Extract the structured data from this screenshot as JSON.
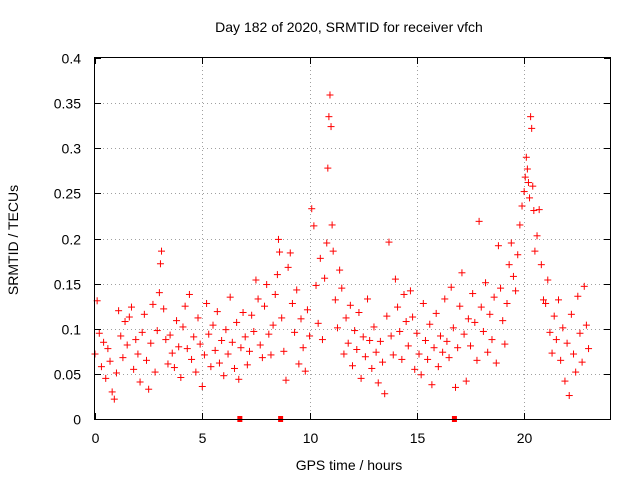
{
  "chart_data": {
    "type": "scatter",
    "title": "Day 182 of 2020, SRMTID for receiver vfch",
    "xlabel": "GPS time / hours",
    "ylabel": "SRMTID / TECUs",
    "xlim": [
      0,
      24
    ],
    "ylim": [
      0,
      0.4
    ],
    "xticks": [
      0,
      5,
      10,
      15,
      20
    ],
    "xtick_labels": [
      "0",
      "5",
      "10",
      "15",
      "20"
    ],
    "yticks": [
      0,
      0.05,
      0.1,
      0.15,
      0.2,
      0.25,
      0.3,
      0.35,
      0.4
    ],
    "ytick_labels": [
      "0",
      "0.05",
      "0.1",
      "0.15",
      "0.2",
      "0.25",
      "0.3",
      "0.35",
      "0.4"
    ],
    "grid": true,
    "marker": "+",
    "color": "#ff0000",
    "series": [
      {
        "name": "SRMTID",
        "points": [
          [
            0.0,
            0.072
          ],
          [
            0.1,
            0.131
          ],
          [
            0.2,
            0.095
          ],
          [
            0.3,
            0.058
          ],
          [
            0.4,
            0.085
          ],
          [
            0.5,
            0.045
          ],
          [
            0.6,
            0.078
          ],
          [
            0.7,
            0.064
          ],
          [
            0.8,
            0.03
          ],
          [
            0.9,
            0.022
          ],
          [
            1.0,
            0.051
          ],
          [
            1.1,
            0.12
          ],
          [
            1.2,
            0.092
          ],
          [
            1.3,
            0.068
          ],
          [
            1.4,
            0.108
          ],
          [
            1.5,
            0.082
          ],
          [
            1.6,
            0.113
          ],
          [
            1.7,
            0.124
          ],
          [
            1.8,
            0.055
          ],
          [
            1.9,
            0.088
          ],
          [
            2.0,
            0.072
          ],
          [
            2.1,
            0.041
          ],
          [
            2.2,
            0.096
          ],
          [
            2.3,
            0.116
          ],
          [
            2.4,
            0.065
          ],
          [
            2.5,
            0.033
          ],
          [
            2.6,
            0.084
          ],
          [
            2.7,
            0.127
          ],
          [
            2.8,
            0.052
          ],
          [
            2.9,
            0.098
          ],
          [
            3.0,
            0.14
          ],
          [
            3.05,
            0.172
          ],
          [
            3.1,
            0.186
          ],
          [
            3.2,
            0.122
          ],
          [
            3.3,
            0.088
          ],
          [
            3.4,
            0.061
          ],
          [
            3.5,
            0.093
          ],
          [
            3.6,
            0.073
          ],
          [
            3.7,
            0.057
          ],
          [
            3.8,
            0.109
          ],
          [
            3.9,
            0.08
          ],
          [
            4.0,
            0.046
          ],
          [
            4.1,
            0.102
          ],
          [
            4.2,
            0.125
          ],
          [
            4.3,
            0.078
          ],
          [
            4.4,
            0.138
          ],
          [
            4.5,
            0.066
          ],
          [
            4.6,
            0.091
          ],
          [
            4.7,
            0.052
          ],
          [
            4.8,
            0.112
          ],
          [
            4.9,
            0.083
          ],
          [
            5.0,
            0.036
          ],
          [
            5.1,
            0.071
          ],
          [
            5.2,
            0.128
          ],
          [
            5.3,
            0.094
          ],
          [
            5.4,
            0.058
          ],
          [
            5.5,
            0.104
          ],
          [
            5.6,
            0.076
          ],
          [
            5.7,
            0.119
          ],
          [
            5.8,
            0.062
          ],
          [
            5.9,
            0.087
          ],
          [
            6.0,
            0.048
          ],
          [
            6.1,
            0.099
          ],
          [
            6.2,
            0.072
          ],
          [
            6.3,
            0.135
          ],
          [
            6.4,
            0.085
          ],
          [
            6.5,
            0.056
          ],
          [
            6.6,
            0.107
          ],
          [
            6.7,
            0.044
          ],
          [
            6.8,
            0.079
          ],
          [
            6.9,
            0.118
          ],
          [
            7.0,
            0.091
          ],
          [
            7.1,
            0.06
          ],
          [
            7.2,
            0.075
          ],
          [
            7.3,
            0.115
          ],
          [
            7.4,
            0.097
          ],
          [
            7.5,
            0.154
          ],
          [
            7.6,
            0.133
          ],
          [
            7.7,
            0.082
          ],
          [
            7.8,
            0.068
          ],
          [
            7.9,
            0.125
          ],
          [
            8.0,
            0.149
          ],
          [
            8.1,
            0.094
          ],
          [
            8.2,
            0.071
          ],
          [
            8.3,
            0.104
          ],
          [
            8.4,
            0.138
          ],
          [
            8.5,
            0.16
          ],
          [
            8.55,
            0.199
          ],
          [
            8.6,
            0.185
          ],
          [
            8.7,
            0.112
          ],
          [
            8.8,
            0.075
          ],
          [
            8.9,
            0.043
          ],
          [
            9.0,
            0.168
          ],
          [
            9.1,
            0.184
          ],
          [
            9.2,
            0.128
          ],
          [
            9.3,
            0.096
          ],
          [
            9.4,
            0.143
          ],
          [
            9.5,
            0.061
          ],
          [
            9.6,
            0.111
          ],
          [
            9.7,
            0.079
          ],
          [
            9.8,
            0.053
          ],
          [
            9.9,
            0.121
          ],
          [
            10.0,
            0.092
          ],
          [
            10.1,
            0.233
          ],
          [
            10.2,
            0.214
          ],
          [
            10.3,
            0.148
          ],
          [
            10.4,
            0.106
          ],
          [
            10.5,
            0.178
          ],
          [
            10.6,
            0.088
          ],
          [
            10.7,
            0.156
          ],
          [
            10.8,
            0.195
          ],
          [
            10.85,
            0.278
          ],
          [
            10.9,
            0.335
          ],
          [
            10.95,
            0.359
          ],
          [
            11.0,
            0.324
          ],
          [
            11.05,
            0.215
          ],
          [
            11.1,
            0.186
          ],
          [
            11.2,
            0.132
          ],
          [
            11.3,
            0.101
          ],
          [
            11.4,
            0.165
          ],
          [
            11.5,
            0.145
          ],
          [
            11.6,
            0.072
          ],
          [
            11.7,
            0.112
          ],
          [
            11.8,
            0.084
          ],
          [
            11.9,
            0.126
          ],
          [
            12.0,
            0.059
          ],
          [
            12.1,
            0.098
          ],
          [
            12.2,
            0.077
          ],
          [
            12.3,
            0.118
          ],
          [
            12.4,
            0.045
          ],
          [
            12.5,
            0.091
          ],
          [
            12.6,
            0.069
          ],
          [
            12.7,
            0.133
          ],
          [
            12.8,
            0.087
          ],
          [
            12.9,
            0.056
          ],
          [
            13.0,
            0.102
          ],
          [
            13.1,
            0.074
          ],
          [
            13.2,
            0.04
          ],
          [
            13.3,
            0.086
          ],
          [
            13.4,
            0.063
          ],
          [
            13.5,
            0.028
          ],
          [
            13.6,
            0.114
          ],
          [
            13.7,
            0.196
          ],
          [
            13.8,
            0.092
          ],
          [
            13.9,
            0.071
          ],
          [
            14.0,
            0.155
          ],
          [
            14.1,
            0.124
          ],
          [
            14.2,
            0.097
          ],
          [
            14.3,
            0.066
          ],
          [
            14.4,
            0.138
          ],
          [
            14.5,
            0.108
          ],
          [
            14.6,
            0.081
          ],
          [
            14.7,
            0.142
          ],
          [
            14.8,
            0.113
          ],
          [
            14.9,
            0.055
          ],
          [
            15.0,
            0.095
          ],
          [
            15.1,
            0.072
          ],
          [
            15.2,
            0.049
          ],
          [
            15.3,
            0.128
          ],
          [
            15.4,
            0.087
          ],
          [
            15.5,
            0.066
          ],
          [
            15.6,
            0.105
          ],
          [
            15.7,
            0.038
          ],
          [
            15.8,
            0.079
          ],
          [
            15.9,
            0.117
          ],
          [
            16.0,
            0.058
          ],
          [
            16.1,
            0.092
          ],
          [
            16.2,
            0.074
          ],
          [
            16.3,
            0.133
          ],
          [
            16.4,
            0.086
          ],
          [
            16.5,
            0.068
          ],
          [
            16.6,
            0.146
          ],
          [
            16.7,
            0.101
          ],
          [
            16.8,
            0.035
          ],
          [
            16.9,
            0.079
          ],
          [
            17.0,
            0.125
          ],
          [
            17.1,
            0.162
          ],
          [
            17.2,
            0.094
          ],
          [
            17.3,
            0.042
          ],
          [
            17.4,
            0.111
          ],
          [
            17.5,
            0.081
          ],
          [
            17.6,
            0.139
          ],
          [
            17.7,
            0.107
          ],
          [
            17.8,
            0.065
          ],
          [
            17.9,
            0.219
          ],
          [
            18.0,
            0.124
          ],
          [
            18.1,
            0.097
          ],
          [
            18.2,
            0.151
          ],
          [
            18.3,
            0.074
          ],
          [
            18.4,
            0.116
          ],
          [
            18.5,
            0.088
          ],
          [
            18.6,
            0.135
          ],
          [
            18.7,
            0.062
          ],
          [
            18.8,
            0.192
          ],
          [
            18.9,
            0.145
          ],
          [
            19.0,
            0.109
          ],
          [
            19.1,
            0.083
          ],
          [
            19.2,
            0.128
          ],
          [
            19.3,
            0.171
          ],
          [
            19.4,
            0.195
          ],
          [
            19.5,
            0.158
          ],
          [
            19.6,
            0.142
          ],
          [
            19.7,
            0.182
          ],
          [
            19.8,
            0.215
          ],
          [
            19.9,
            0.236
          ],
          [
            20.0,
            0.252
          ],
          [
            20.05,
            0.268
          ],
          [
            20.1,
            0.29
          ],
          [
            20.15,
            0.277
          ],
          [
            20.2,
            0.262
          ],
          [
            20.25,
            0.245
          ],
          [
            20.3,
            0.335
          ],
          [
            20.35,
            0.322
          ],
          [
            20.4,
            0.258
          ],
          [
            20.45,
            0.231
          ],
          [
            20.5,
            0.186
          ],
          [
            20.6,
            0.203
          ],
          [
            20.7,
            0.232
          ],
          [
            20.8,
            0.171
          ],
          [
            20.9,
            0.132
          ],
          [
            21.0,
            0.128
          ],
          [
            21.1,
            0.154
          ],
          [
            21.2,
            0.096
          ],
          [
            21.3,
            0.073
          ],
          [
            21.4,
            0.114
          ],
          [
            21.5,
            0.088
          ],
          [
            21.6,
            0.132
          ],
          [
            21.7,
            0.065
          ],
          [
            21.8,
            0.101
          ],
          [
            21.9,
            0.042
          ],
          [
            22.0,
            0.084
          ],
          [
            22.1,
            0.026
          ],
          [
            22.2,
            0.116
          ],
          [
            22.3,
            0.072
          ],
          [
            22.4,
            0.052
          ],
          [
            22.5,
            0.136
          ],
          [
            22.6,
            0.095
          ],
          [
            22.7,
            0.063
          ],
          [
            22.8,
            0.147
          ],
          [
            22.9,
            0.104
          ],
          [
            23.0,
            0.078
          ]
        ]
      }
    ],
    "gap_markers_x": [
      6.75,
      8.65,
      16.75
    ]
  }
}
